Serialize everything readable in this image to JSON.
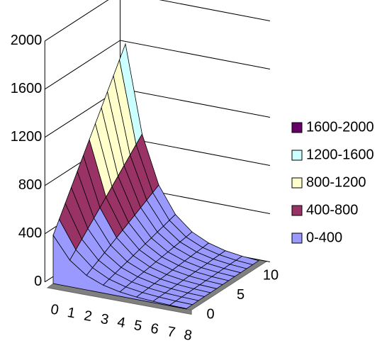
{
  "chart_data": {
    "type": "surface",
    "categories": [
      "0",
      "1",
      "2",
      "3",
      "4",
      "5",
      "6",
      "7",
      "8"
    ],
    "depth_ticks": [
      0,
      5,
      10
    ],
    "series": [
      {
        "values": [
          400,
          220,
          120,
          66,
          36,
          20,
          11,
          6,
          3
        ]
      },
      {
        "values": [
          500,
          274,
          151,
          83,
          45,
          25,
          14,
          7,
          4
        ]
      },
      {
        "values": [
          600,
          329,
          181,
          99,
          54,
          30,
          16,
          9,
          5
        ]
      },
      {
        "values": [
          700,
          384,
          211,
          116,
          64,
          35,
          19,
          10,
          6
        ]
      },
      {
        "values": [
          800,
          439,
          241,
          132,
          73,
          40,
          22,
          12,
          6
        ]
      },
      {
        "values": [
          900,
          494,
          271,
          149,
          82,
          45,
          24,
          13,
          7
        ]
      },
      {
        "values": [
          1000,
          549,
          301,
          165,
          91,
          50,
          27,
          15,
          8
        ]
      },
      {
        "values": [
          1100,
          604,
          331,
          182,
          100,
          55,
          30,
          16,
          9
        ]
      },
      {
        "values": [
          1200,
          659,
          361,
          198,
          109,
          60,
          32,
          18,
          10
        ]
      },
      {
        "values": [
          1300,
          714,
          391,
          215,
          118,
          65,
          35,
          19,
          10
        ]
      },
      {
        "values": [
          1400,
          769,
          421,
          231,
          127,
          70,
          38,
          21,
          11
        ]
      },
      {
        "values": [
          1500,
          824,
          452,
          248,
          136,
          75,
          41,
          22,
          12
        ]
      },
      {
        "values": [
          1600,
          878,
          482,
          264,
          146,
          80,
          43,
          24,
          13
        ]
      }
    ],
    "zlim": [
      0,
      2000
    ],
    "zticks": [
      0,
      400,
      800,
      1200,
      1600,
      2000
    ],
    "bands": [
      {
        "name": "1600-2000",
        "range": [
          1600,
          2000
        ],
        "color": "#660066"
      },
      {
        "name": "1200-1600",
        "range": [
          1200,
          1600
        ],
        "color": "#ccffff"
      },
      {
        "name": "800-1200",
        "range": [
          800,
          1200
        ],
        "color": "#ffffcc"
      },
      {
        "name": "400-800",
        "range": [
          400,
          800
        ],
        "color": "#993366"
      },
      {
        "name": "0-400",
        "range": [
          0,
          400
        ],
        "color": "#9999ff"
      }
    ],
    "legend": "right",
    "grid": true
  }
}
